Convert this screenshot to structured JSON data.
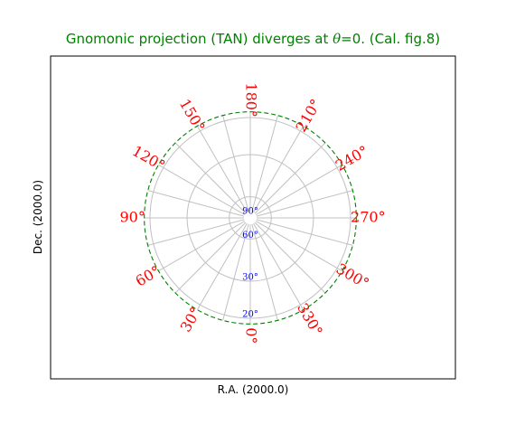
{
  "chart_data": {
    "type": "polar-graticule",
    "projection": "TAN",
    "title_prefix": "Gnomonic projection (TAN) diverges at ",
    "title_math": "θ",
    "title_suffix": "=0. (Cal. fig.8)",
    "xlabel": "R.A. (2000.0)",
    "ylabel": "Dec. (2000.0)",
    "dec_circles": [
      20,
      30,
      60,
      90
    ],
    "dec_limit": 19,
    "ra_meridians_step": 15,
    "ra_labels": [
      {
        "ra": 0,
        "text": "0°"
      },
      {
        "ra": 30,
        "text": "30°"
      },
      {
        "ra": 60,
        "text": "60°"
      },
      {
        "ra": 90,
        "text": "90°"
      },
      {
        "ra": 120,
        "text": "120°"
      },
      {
        "ra": 150,
        "text": "150°"
      },
      {
        "ra": 180,
        "text": "180°"
      },
      {
        "ra": 210,
        "text": "210°"
      },
      {
        "ra": 240,
        "text": "240°"
      },
      {
        "ra": 270,
        "text": "270°"
      },
      {
        "ra": 300,
        "text": "300°"
      },
      {
        "ra": 330,
        "text": "330°"
      }
    ],
    "dec_labels": [
      {
        "dec": 90,
        "text": "90°"
      },
      {
        "dec": 60,
        "text": "60°"
      },
      {
        "dec": 30,
        "text": "30°"
      },
      {
        "dec": 20,
        "text": "20°"
      }
    ],
    "colors": {
      "title": "#008000",
      "ra_labels": "#ff0000",
      "dec_labels": "#0000ff",
      "grid": "#c0c0c0",
      "border": "#008000",
      "frame": "#000000"
    }
  }
}
